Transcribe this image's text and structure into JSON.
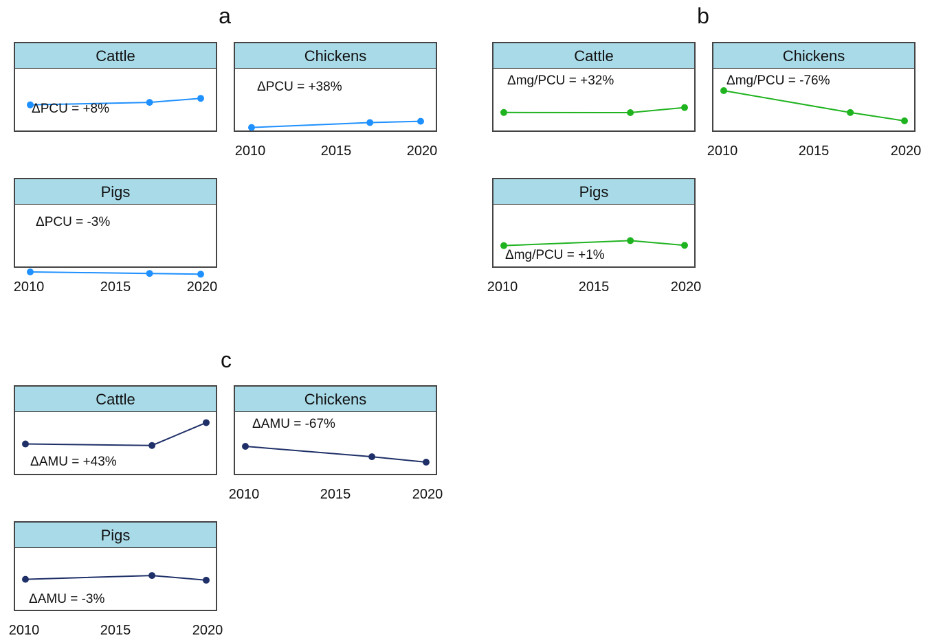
{
  "chart_data": [
    {
      "type": "line",
      "label": "a",
      "color": "#1e90ff",
      "xlim": [
        2010,
        2020
      ],
      "x_ticks": [
        "2010",
        "2015",
        "2020"
      ],
      "panels": [
        {
          "title": "Cattle",
          "annotation": "ΔPCU = +8%",
          "x": [
            2010,
            2017,
            2020
          ],
          "y": [
            100,
            103,
            108
          ]
        },
        {
          "title": "Chickens",
          "annotation": "ΔPCU = +38%",
          "x": [
            2010,
            2017,
            2020
          ],
          "y": [
            100,
            130,
            138
          ]
        },
        {
          "title": "Pigs",
          "annotation": "ΔPCU = -3%",
          "x": [
            2010,
            2017,
            2020
          ],
          "y": [
            100,
            98,
            97
          ]
        }
      ]
    },
    {
      "type": "line",
      "label": "b",
      "color": "#1fb31f",
      "xlim": [
        2010,
        2020
      ],
      "x_ticks": [
        "2010",
        "2015",
        "2020"
      ],
      "panels": [
        {
          "title": "Cattle",
          "annotation": "Δmg/PCU = +32%",
          "x": [
            2010,
            2017,
            2020
          ],
          "y": [
            100,
            99,
            132
          ]
        },
        {
          "title": "Chickens",
          "annotation": "Δmg/PCU = -76%",
          "x": [
            2010,
            2017,
            2020
          ],
          "y": [
            100,
            45,
            24
          ]
        },
        {
          "title": "Pigs",
          "annotation": "Δmg/PCU = +1%",
          "x": [
            2010,
            2017,
            2020
          ],
          "y": [
            100,
            117,
            101
          ]
        }
      ]
    },
    {
      "type": "line",
      "label": "c",
      "color": "#1f3068",
      "xlim": [
        2010,
        2020
      ],
      "x_ticks": [
        "2010",
        "2015",
        "2020"
      ],
      "panels": [
        {
          "title": "Cattle",
          "annotation": "ΔAMU = +43%",
          "x": [
            2010,
            2017,
            2020
          ],
          "y": [
            100,
            97,
            143
          ]
        },
        {
          "title": "Chickens",
          "annotation": "ΔAMU = -67%",
          "x": [
            2010,
            2017,
            2020
          ],
          "y": [
            100,
            56,
            33
          ]
        },
        {
          "title": "Pigs",
          "annotation": "ΔAMU = -3%",
          "x": [
            2010,
            2017,
            2020
          ],
          "y": [
            100,
            113,
            97
          ]
        }
      ]
    }
  ]
}
